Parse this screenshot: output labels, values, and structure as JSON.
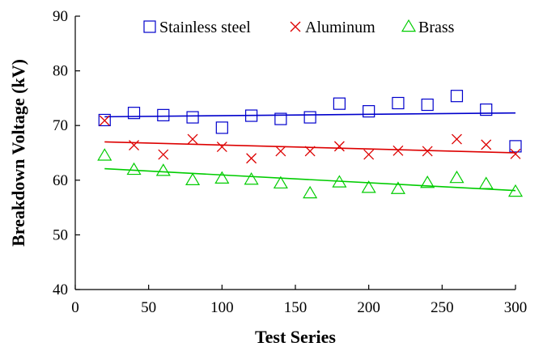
{
  "chart_data": {
    "type": "scatter",
    "title": "",
    "xlabel": "Test Series",
    "ylabel": "Breakdown Voltage (kV)",
    "xlim": [
      0,
      300
    ],
    "ylim": [
      40,
      90
    ],
    "xticks": [
      "0",
      "50",
      "100",
      "150",
      "200",
      "250",
      "300"
    ],
    "yticks": [
      "40",
      "50",
      "60",
      "70",
      "80",
      "90"
    ],
    "grid": false,
    "legend_position": "top",
    "x": [
      20,
      40,
      60,
      80,
      100,
      120,
      140,
      160,
      180,
      200,
      220,
      240,
      260,
      280,
      300
    ],
    "series": [
      {
        "name": "Stainless steel",
        "marker": "square",
        "color": "#0000cc",
        "values": [
          71.0,
          72.3,
          71.9,
          71.5,
          69.6,
          71.8,
          71.2,
          71.5,
          74.0,
          72.6,
          74.1,
          73.8,
          75.4,
          72.9,
          66.2
        ],
        "trendline": [
          71.6,
          72.3
        ]
      },
      {
        "name": "Aluminum",
        "marker": "x",
        "color": "#dd0000",
        "values": [
          70.9,
          66.4,
          64.7,
          67.5,
          66.1,
          64.0,
          65.3,
          65.3,
          66.2,
          64.7,
          65.4,
          65.3,
          67.5,
          66.5,
          64.8
        ],
        "trendline": [
          67.0,
          65.0
        ]
      },
      {
        "name": "Brass",
        "marker": "triangle",
        "color": "#00cc00",
        "values": [
          64.5,
          61.9,
          61.7,
          60.0,
          60.3,
          60.1,
          59.4,
          57.6,
          59.6,
          58.6,
          58.4,
          59.5,
          60.4,
          59.3,
          57.9
        ],
        "trendline": [
          62.1,
          58.1
        ]
      }
    ]
  }
}
